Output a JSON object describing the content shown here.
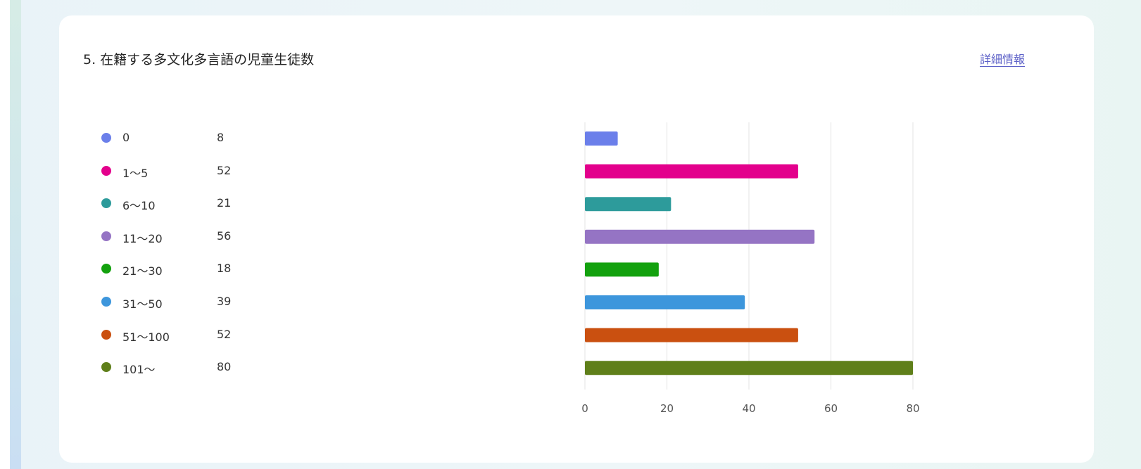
{
  "card": {
    "title": "5. 在籍する多文化多言語の児童生徒数",
    "details_link": "詳細情報"
  },
  "legend": [
    {
      "label": "0",
      "count": "8",
      "color": "#6b7fea"
    },
    {
      "label": " 1～5",
      "count": "52",
      "color": "#e3008c"
    },
    {
      "label": "6～10",
      "count": "21",
      "color": "#2d9b9b"
    },
    {
      "label": "11～20",
      "count": "56",
      "color": "#9574c4"
    },
    {
      "label": "21～30",
      "count": "18",
      "color": "#13a10e"
    },
    {
      "label": "31～50",
      "count": "39",
      "color": "#3d96dc"
    },
    {
      "label": "51～100",
      "count": "52",
      "color": "#ca5010"
    },
    {
      "label": "101～",
      "count": "80",
      "color": "#5f7f1a"
    }
  ],
  "chart_data": {
    "type": "bar",
    "orientation": "horizontal",
    "categories": [
      "0",
      " 1～5",
      "6～10",
      "11～20",
      "21～30",
      "31～50",
      "51～100",
      "101～"
    ],
    "values": [
      8,
      52,
      21,
      56,
      18,
      39,
      52,
      80
    ],
    "colors": [
      "#6b7fea",
      "#e3008c",
      "#2d9b9b",
      "#9574c4",
      "#13a10e",
      "#3d96dc",
      "#ca5010",
      "#5f7f1a"
    ],
    "xlim": [
      0,
      80
    ],
    "xticks": [
      0,
      20,
      40,
      60,
      80
    ],
    "grid": true,
    "legend": "left"
  }
}
